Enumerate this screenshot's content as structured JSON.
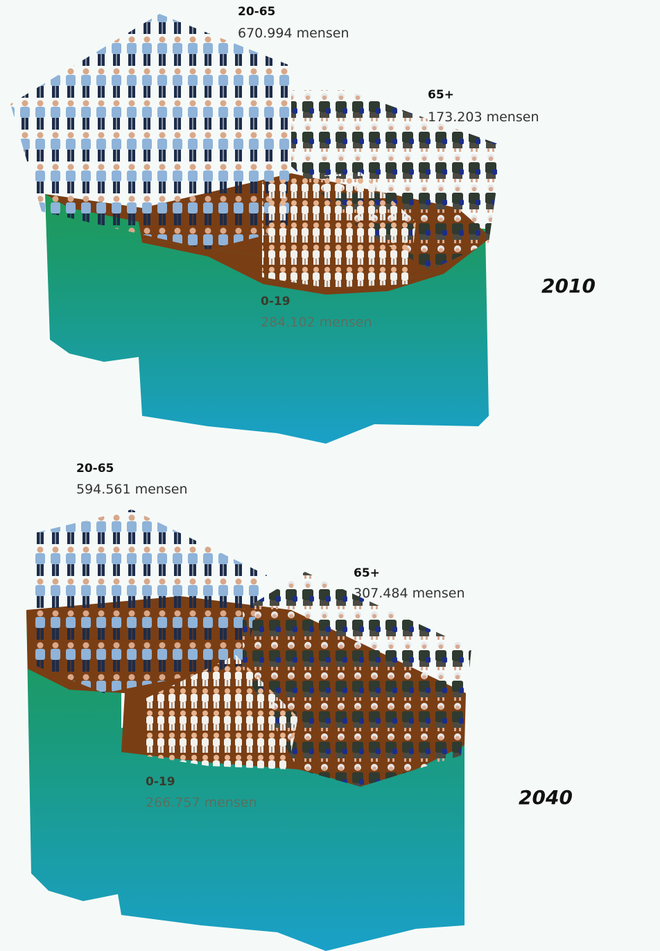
{
  "panels": [
    {
      "year": "2010",
      "groups": [
        {
          "label": "20-65",
          "value": "670.994 mensen"
        },
        {
          "label": "65+",
          "value": "173.203 mensen"
        },
        {
          "label": "0-19",
          "value": "284.102 mensen"
        }
      ]
    },
    {
      "year": "2040",
      "groups": [
        {
          "label": "20-65",
          "value": "594.561 mensen"
        },
        {
          "label": "65+",
          "value": "307.484 mensen"
        },
        {
          "label": "0-19",
          "value": "266.757 mensen"
        }
      ]
    }
  ]
}
